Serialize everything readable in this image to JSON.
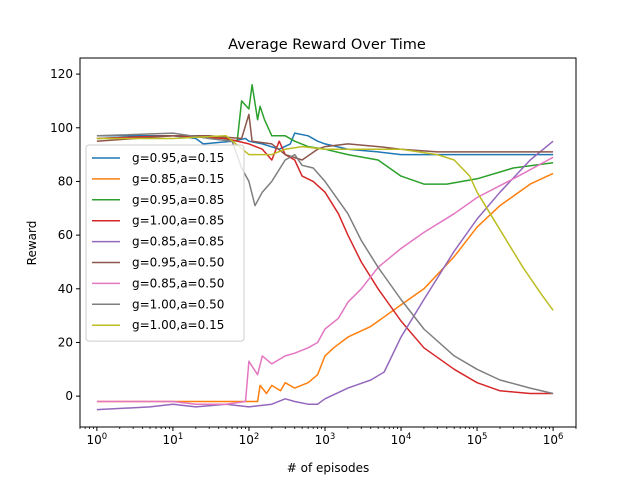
{
  "chart_data": {
    "type": "line",
    "title": "Average Reward Over Time",
    "xlabel": "# of episodes",
    "ylabel": "Reward",
    "xscale": "log",
    "xlim": [
      0.6,
      2000000
    ],
    "ylim": [
      -11.5,
      126
    ],
    "x_ticks": [
      {
        "value": 1,
        "base": "10",
        "exp": "0"
      },
      {
        "value": 10,
        "base": "10",
        "exp": "1"
      },
      {
        "value": 100,
        "base": "10",
        "exp": "2"
      },
      {
        "value": 1000,
        "base": "10",
        "exp": "3"
      },
      {
        "value": 10000,
        "base": "10",
        "exp": "4"
      },
      {
        "value": 100000,
        "base": "10",
        "exp": "5"
      },
      {
        "value": 1000000,
        "base": "10",
        "exp": "6"
      }
    ],
    "y_ticks": [
      0,
      20,
      40,
      60,
      80,
      100,
      120
    ],
    "grid": false,
    "legend_position": "left",
    "series": [
      {
        "name": "g=0.95,a=0.15",
        "color": "#1f77b4",
        "points": [
          [
            1,
            97
          ],
          [
            10,
            97
          ],
          [
            20,
            96
          ],
          [
            25,
            94
          ],
          [
            60,
            95
          ],
          [
            90,
            96
          ],
          [
            100,
            95
          ],
          [
            150,
            94
          ],
          [
            250,
            92
          ],
          [
            350,
            94
          ],
          [
            400,
            98
          ],
          [
            600,
            97
          ],
          [
            800,
            95
          ],
          [
            1000,
            94
          ],
          [
            2000,
            92
          ],
          [
            5000,
            91
          ],
          [
            10000,
            90
          ],
          [
            30000,
            90
          ],
          [
            100000,
            90
          ],
          [
            300000,
            90
          ],
          [
            1000000,
            90
          ]
        ]
      },
      {
        "name": "g=0.85,a=0.15",
        "color": "#ff7f0e",
        "points": [
          [
            1,
            -2
          ],
          [
            10,
            -2
          ],
          [
            50,
            -2
          ],
          [
            130,
            -2
          ],
          [
            140,
            4
          ],
          [
            170,
            1
          ],
          [
            200,
            4
          ],
          [
            260,
            2
          ],
          [
            300,
            5
          ],
          [
            400,
            3
          ],
          [
            600,
            5
          ],
          [
            800,
            8
          ],
          [
            1000,
            15
          ],
          [
            1300,
            18
          ],
          [
            2000,
            22
          ],
          [
            4000,
            26
          ],
          [
            10000,
            34
          ],
          [
            20000,
            40
          ],
          [
            50000,
            52
          ],
          [
            100000,
            63
          ],
          [
            200000,
            71
          ],
          [
            500000,
            79
          ],
          [
            1000000,
            83
          ]
        ]
      },
      {
        "name": "g=0.95,a=0.85",
        "color": "#2ca02c",
        "points": [
          [
            1,
            96
          ],
          [
            10,
            97
          ],
          [
            30,
            97
          ],
          [
            70,
            95
          ],
          [
            80,
            110
          ],
          [
            100,
            107
          ],
          [
            110,
            116
          ],
          [
            130,
            103
          ],
          [
            140,
            108
          ],
          [
            160,
            103
          ],
          [
            200,
            97
          ],
          [
            300,
            97
          ],
          [
            400,
            95
          ],
          [
            600,
            93
          ],
          [
            1000,
            92
          ],
          [
            2000,
            90
          ],
          [
            5000,
            88
          ],
          [
            10000,
            82
          ],
          [
            20000,
            79
          ],
          [
            40000,
            79
          ],
          [
            100000,
            81
          ],
          [
            300000,
            85
          ],
          [
            1000000,
            87
          ]
        ]
      },
      {
        "name": "g=1.00,a=0.85",
        "color": "#d62728",
        "points": [
          [
            1,
            96
          ],
          [
            10,
            97
          ],
          [
            50,
            96
          ],
          [
            100,
            94
          ],
          [
            150,
            92
          ],
          [
            200,
            88
          ],
          [
            250,
            95
          ],
          [
            300,
            90
          ],
          [
            400,
            88
          ],
          [
            500,
            82
          ],
          [
            700,
            80
          ],
          [
            1000,
            76
          ],
          [
            1500,
            68
          ],
          [
            2000,
            60
          ],
          [
            3000,
            50
          ],
          [
            5000,
            40
          ],
          [
            10000,
            28
          ],
          [
            20000,
            18
          ],
          [
            50000,
            10
          ],
          [
            100000,
            5
          ],
          [
            200000,
            2
          ],
          [
            500000,
            1
          ],
          [
            1000000,
            1
          ]
        ]
      },
      {
        "name": "g=0.85,a=0.85",
        "color": "#9467bd",
        "points": [
          [
            1,
            -5
          ],
          [
            5,
            -4
          ],
          [
            10,
            -3
          ],
          [
            20,
            -4
          ],
          [
            50,
            -3
          ],
          [
            100,
            -4
          ],
          [
            200,
            -3
          ],
          [
            300,
            -1
          ],
          [
            400,
            -2
          ],
          [
            600,
            -3
          ],
          [
            800,
            -3
          ],
          [
            1000,
            -1
          ],
          [
            2000,
            3
          ],
          [
            4000,
            6
          ],
          [
            6000,
            9
          ],
          [
            10000,
            22
          ],
          [
            20000,
            36
          ],
          [
            50000,
            54
          ],
          [
            100000,
            66
          ],
          [
            200000,
            76
          ],
          [
            500000,
            88
          ],
          [
            1000000,
            95
          ]
        ]
      },
      {
        "name": "g=0.95,a=0.50",
        "color": "#8c564b",
        "points": [
          [
            1,
            95
          ],
          [
            10,
            97
          ],
          [
            30,
            97
          ],
          [
            80,
            96
          ],
          [
            100,
            105
          ],
          [
            110,
            95
          ],
          [
            200,
            94
          ],
          [
            300,
            90
          ],
          [
            500,
            88
          ],
          [
            800,
            92
          ],
          [
            1000,
            93
          ],
          [
            2000,
            94
          ],
          [
            5000,
            93
          ],
          [
            10000,
            92
          ],
          [
            30000,
            91
          ],
          [
            100000,
            91
          ],
          [
            300000,
            91
          ],
          [
            1000000,
            91
          ]
        ]
      },
      {
        "name": "g=0.85,a=0.50",
        "color": "#e377c2",
        "points": [
          [
            1,
            -2
          ],
          [
            10,
            -2
          ],
          [
            20,
            -3
          ],
          [
            50,
            -3
          ],
          [
            90,
            -2
          ],
          [
            100,
            13
          ],
          [
            130,
            8
          ],
          [
            150,
            15
          ],
          [
            200,
            12
          ],
          [
            300,
            15
          ],
          [
            400,
            16
          ],
          [
            600,
            18
          ],
          [
            800,
            20
          ],
          [
            1000,
            25
          ],
          [
            1500,
            29
          ],
          [
            2000,
            35
          ],
          [
            3000,
            40
          ],
          [
            5000,
            48
          ],
          [
            10000,
            55
          ],
          [
            20000,
            61
          ],
          [
            50000,
            68
          ],
          [
            100000,
            74
          ],
          [
            300000,
            81
          ],
          [
            1000000,
            89
          ]
        ]
      },
      {
        "name": "g=1.00,a=0.50",
        "color": "#7f7f7f",
        "points": [
          [
            1,
            97
          ],
          [
            10,
            98
          ],
          [
            30,
            96
          ],
          [
            60,
            95
          ],
          [
            80,
            85
          ],
          [
            100,
            80
          ],
          [
            120,
            71
          ],
          [
            150,
            76
          ],
          [
            200,
            80
          ],
          [
            300,
            88
          ],
          [
            400,
            90
          ],
          [
            500,
            86
          ],
          [
            700,
            85
          ],
          [
            1000,
            80
          ],
          [
            2000,
            68
          ],
          [
            3000,
            58
          ],
          [
            5000,
            48
          ],
          [
            10000,
            36
          ],
          [
            20000,
            25
          ],
          [
            50000,
            15
          ],
          [
            100000,
            10
          ],
          [
            200000,
            6
          ],
          [
            500000,
            3
          ],
          [
            1000000,
            1
          ]
        ]
      },
      {
        "name": "g=1.00,a=0.15",
        "color": "#bcbd22",
        "points": [
          [
            1,
            96
          ],
          [
            10,
            96
          ],
          [
            50,
            97
          ],
          [
            100,
            90
          ],
          [
            200,
            90
          ],
          [
            300,
            92
          ],
          [
            500,
            93
          ],
          [
            1000,
            92
          ],
          [
            2000,
            92
          ],
          [
            5000,
            92
          ],
          [
            10000,
            92
          ],
          [
            30000,
            90
          ],
          [
            50000,
            88
          ],
          [
            80000,
            82
          ],
          [
            100000,
            76
          ],
          [
            200000,
            62
          ],
          [
            400000,
            48
          ],
          [
            700000,
            38
          ],
          [
            1000000,
            32
          ]
        ]
      }
    ]
  }
}
